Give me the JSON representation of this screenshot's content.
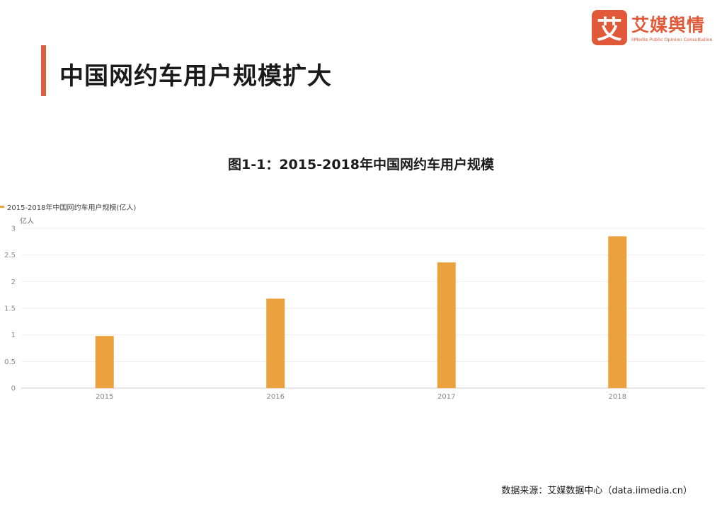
{
  "header": {
    "page_title": "中国网约车用户规模扩大"
  },
  "logo": {
    "mark": "艾",
    "name": "艾媒舆情",
    "subtitle": "iiMedia Public Opinion Consultation"
  },
  "colors": {
    "accent": "#d9623f",
    "bar": "#eba13e",
    "logo": "#e2593a"
  },
  "chart_data": {
    "type": "bar",
    "title": "图1-1：2015-2018年中国网约车用户规模",
    "categories": [
      "2015",
      "2016",
      "2017",
      "2018"
    ],
    "series": [
      {
        "name": "2015-2018年中国网约车用户规模(亿人)",
        "values": [
          0.98,
          1.68,
          2.36,
          2.85
        ]
      }
    ],
    "ylabel": "亿人",
    "ylim": [
      0,
      3
    ],
    "yticks": [
      "0",
      "0.5",
      "1",
      "1.5",
      "2",
      "2.5",
      "3"
    ],
    "grid": true,
    "legend": "top-left"
  },
  "footer": {
    "source": "数据来源：艾媒数据中心（data.iimedia.cn）"
  }
}
